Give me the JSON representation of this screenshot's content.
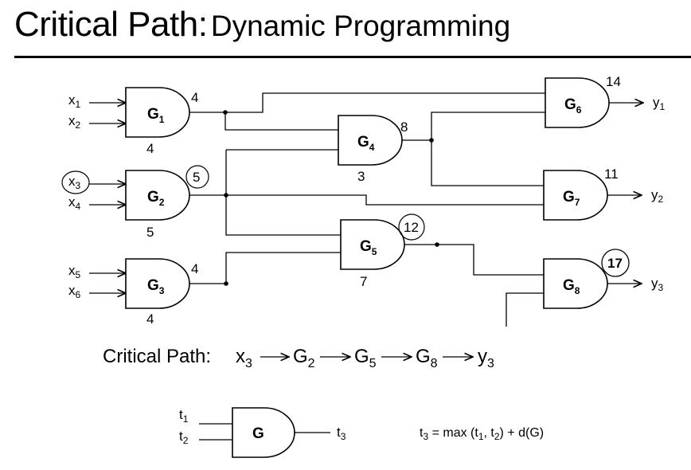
{
  "title": {
    "main": "Critical Path:",
    "sub": "Dynamic Programming"
  },
  "inputs": [
    {
      "base": "x",
      "sub": "1"
    },
    {
      "base": "x",
      "sub": "2"
    },
    {
      "base": "x",
      "sub": "3"
    },
    {
      "base": "x",
      "sub": "4"
    },
    {
      "base": "x",
      "sub": "5"
    },
    {
      "base": "x",
      "sub": "6"
    }
  ],
  "outputs": [
    {
      "base": "y",
      "sub": "1"
    },
    {
      "base": "y",
      "sub": "2"
    },
    {
      "base": "y",
      "sub": "3"
    }
  ],
  "gates": [
    {
      "name": "G",
      "sub": "1",
      "delay": "4",
      "arrival": "4"
    },
    {
      "name": "G",
      "sub": "2",
      "delay": "5",
      "arrival": "5"
    },
    {
      "name": "G",
      "sub": "3",
      "delay": "4",
      "arrival": "4"
    },
    {
      "name": "G",
      "sub": "4",
      "delay": "3",
      "arrival": "8"
    },
    {
      "name": "G",
      "sub": "5",
      "delay": "7",
      "arrival": "12"
    },
    {
      "name": "G",
      "sub": "6",
      "arrival": "14"
    },
    {
      "name": "G",
      "sub": "7",
      "arrival": "11"
    },
    {
      "name": "G",
      "sub": "8",
      "arrival": "17"
    }
  ],
  "critical_path": {
    "label": "Critical Path:",
    "steps": [
      {
        "base": "x",
        "sub": "3"
      },
      {
        "base": "G",
        "sub": "2"
      },
      {
        "base": "G",
        "sub": "5"
      },
      {
        "base": "G",
        "sub": "8"
      },
      {
        "base": "y",
        "sub": "3"
      }
    ]
  },
  "legend": {
    "gate_label": "G",
    "in1": {
      "base": "t",
      "sub": "1"
    },
    "in2": {
      "base": "t",
      "sub": "2"
    },
    "out": {
      "base": "t",
      "sub": "3"
    },
    "formula": {
      "t": "t",
      "s3": "3",
      "eq": " = max (t",
      "s1": "1",
      "comma": ", t",
      "s2": "2",
      "tail": ") + d(G)"
    }
  }
}
